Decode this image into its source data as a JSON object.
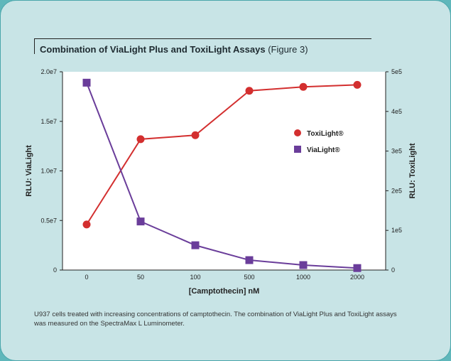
{
  "title": {
    "bold": "Combination of ViaLight Plus and ToxiLight Assays",
    "sub": "(Figure 3)"
  },
  "caption": "U937 cells treated with increasing concentrations of camptothecin. The combination of ViaLight Plus and ToxiLight assays was measured on the SpectraMax L Luminometer.",
  "chart_data": {
    "type": "line",
    "categories": [
      "0",
      "50",
      "100",
      "500",
      "1000",
      "2000"
    ],
    "xlabel": "[Camptothecin] nM",
    "ylabel_left": "RLU: ViaLight",
    "ylabel_right": "RLU: ToxiLight",
    "left_axis": {
      "ylim": [
        0,
        20000000
      ],
      "ticks": [
        0,
        5000000,
        10000000,
        15000000,
        20000000
      ],
      "tick_labels": [
        "0",
        "0.5e7",
        "1.0e7",
        "1.5e7",
        "2.0e7"
      ]
    },
    "right_axis": {
      "ylim": [
        0,
        500000
      ],
      "ticks": [
        0,
        100000,
        200000,
        300000,
        400000,
        500000
      ],
      "tick_labels": [
        "0",
        "1e5",
        "2e5",
        "3e5",
        "4e5",
        "5e5"
      ]
    },
    "legend_position": "right",
    "series": [
      {
        "name": "ToxiLight®",
        "axis": "right",
        "marker": "circle",
        "color": "#d32f2f",
        "values": [
          115000,
          330000,
          340000,
          452000,
          462000,
          467000
        ]
      },
      {
        "name": "ViaLight®",
        "axis": "left",
        "marker": "square",
        "color": "#6a3d9a",
        "values": [
          18900000,
          4900000,
          2500000,
          1000000,
          500000,
          200000
        ]
      }
    ]
  }
}
